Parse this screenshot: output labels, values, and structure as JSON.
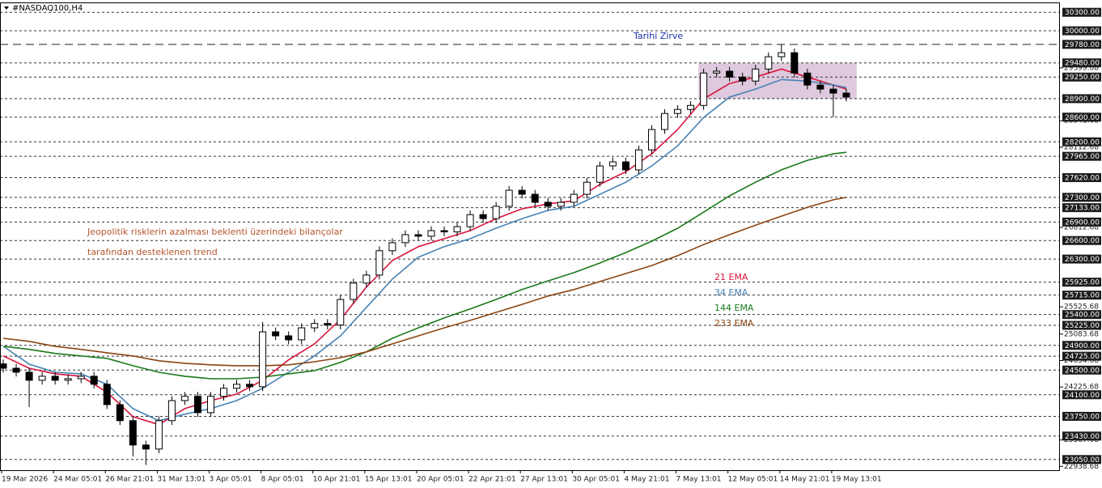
{
  "chart_data": {
    "type": "candlestick",
    "title": "#NASDAQ100,H4",
    "notes": [
      "Jeopolitik risklerin azalması beklenti üzerindeki bilançolar",
      "tarafından desteklenen trend"
    ],
    "up_color": "#ffffff",
    "down_color": "#000000",
    "categories": [
      "19 Mar 2026",
      null,
      null,
      null,
      "24 Mar 05:01",
      null,
      null,
      null,
      "26 Mar 21:01",
      null,
      null,
      null,
      "31 Mar 13:01",
      null,
      null,
      null,
      "3 Apr 05:01",
      null,
      null,
      null,
      "8 Apr 05:01",
      null,
      null,
      null,
      "10 Apr 21:01",
      null,
      null,
      null,
      "15 Apr 13:01",
      null,
      null,
      null,
      "20 Apr 05:01",
      null,
      null,
      null,
      "22 Apr 21:01",
      null,
      null,
      null,
      "27 Apr 13:01",
      null,
      null,
      null,
      "30 Apr 05:01",
      null,
      null,
      null,
      "4 May 21:01",
      null,
      null,
      null,
      "7 May 13:01",
      null,
      null,
      null,
      "12 May 05:01",
      null,
      null,
      null,
      "14 May 21:01",
      null,
      null,
      null,
      "19 May 13:01",
      null
    ],
    "open": [
      24600,
      24530,
      24465,
      24335,
      24400,
      24335,
      24360,
      24400,
      24270,
      23940,
      23680,
      23285,
      23220,
      23680,
      24005,
      24075,
      23810,
      24075,
      24205,
      24270,
      24230,
      25120,
      25055,
      24990,
      25185,
      25255,
      25230,
      25645,
      25910,
      26040,
      26435,
      26565,
      26695,
      26670,
      26760,
      26740,
      26825,
      27020,
      26955,
      27155,
      27415,
      27350,
      27220,
      27155,
      27220,
      27350,
      27545,
      27810,
      27875,
      27745,
      28070,
      28400,
      28660,
      28725,
      28790,
      29315,
      29345,
      29250,
      29185,
      29380,
      29580,
      29645,
      29315,
      29120,
      29055,
      28990
    ],
    "high": [
      24670,
      24600,
      24535,
      24470,
      24470,
      24430,
      24470,
      24470,
      24340,
      24010,
      23750,
      23355,
      23750,
      24075,
      24145,
      24145,
      24145,
      24275,
      24340,
      24340,
      25280,
      25190,
      25125,
      25255,
      25325,
      25325,
      25715,
      25980,
      26110,
      26505,
      26635,
      26765,
      26765,
      26830,
      26830,
      26895,
      27090,
      27090,
      27225,
      27485,
      27485,
      27420,
      27290,
      27290,
      27420,
      27615,
      27880,
      27945,
      27945,
      28140,
      28470,
      28730,
      28795,
      28860,
      29385,
      29415,
      29415,
      29320,
      29450,
      29650,
      29780,
      29715,
      29385,
      29190,
      29125,
      29060
    ],
    "low": [
      24460,
      24395,
      23900,
      24265,
      24265,
      24265,
      24290,
      24200,
      23870,
      23610,
      23100,
      22960,
      23150,
      23610,
      23935,
      23740,
      23740,
      24005,
      24135,
      24160,
      24160,
      24985,
      24920,
      24920,
      25115,
      25160,
      25160,
      25575,
      25840,
      25970,
      26365,
      26495,
      26600,
      26600,
      26670,
      26670,
      26755,
      26885,
      26885,
      27085,
      27280,
      27150,
      27085,
      27085,
      27150,
      27280,
      27475,
      27740,
      27675,
      27675,
      28000,
      28330,
      28590,
      28655,
      28720,
      29245,
      29180,
      29115,
      29115,
      29310,
      29510,
      29245,
      29050,
      28985,
      28600,
      28855
    ],
    "close": [
      24530,
      24465,
      24335,
      24400,
      24335,
      24360,
      24400,
      24270,
      23940,
      23680,
      23285,
      23220,
      23680,
      24005,
      24075,
      23810,
      24075,
      24205,
      24270,
      24230,
      25120,
      25055,
      24990,
      25185,
      25255,
      25230,
      25645,
      25910,
      26040,
      26435,
      26565,
      26695,
      26670,
      26760,
      26740,
      26825,
      27020,
      26955,
      27155,
      27415,
      27350,
      27220,
      27155,
      27220,
      27350,
      27545,
      27810,
      27875,
      27745,
      28070,
      28400,
      28660,
      28725,
      28790,
      29315,
      29345,
      29250,
      29185,
      29380,
      29580,
      29645,
      29315,
      29120,
      29055,
      28990,
      28925
    ],
    "series": [
      {
        "name": "21 EMA",
        "color": "#dc143c",
        "x": [
          0,
          2,
          4,
          6,
          8,
          10,
          12,
          14,
          16,
          18,
          20,
          22,
          24,
          26,
          28,
          30,
          32,
          34,
          36,
          38,
          40,
          42,
          44,
          46,
          48,
          50,
          52,
          54,
          56,
          58,
          60,
          62,
          64,
          65
        ],
        "values": [
          24730,
          24530,
          24440,
          24400,
          24140,
          23745,
          23615,
          23875,
          24005,
          24110,
          24335,
          24665,
          24925,
          25320,
          25845,
          26275,
          26500,
          26630,
          26760,
          26955,
          27115,
          27195,
          27245,
          27510,
          27715,
          28005,
          28400,
          28895,
          29145,
          29250,
          29380,
          29250,
          29120,
          29055
        ]
      },
      {
        "name": "34 EMA",
        "color": "#4682b4",
        "x": [
          0,
          2,
          4,
          6,
          8,
          10,
          12,
          14,
          16,
          18,
          20,
          22,
          24,
          26,
          28,
          30,
          32,
          34,
          36,
          38,
          40,
          42,
          44,
          46,
          48,
          50,
          52,
          54,
          56,
          58,
          60,
          62,
          64,
          65
        ],
        "values": [
          24885,
          24595,
          24465,
          24440,
          24270,
          23875,
          23680,
          23785,
          23875,
          24005,
          24205,
          24465,
          24730,
          25055,
          25515,
          25975,
          26330,
          26500,
          26630,
          26800,
          26955,
          27090,
          27155,
          27350,
          27545,
          27810,
          28135,
          28595,
          28925,
          29055,
          29210,
          29185,
          29120,
          29080
        ]
      },
      {
        "name": "144 EMA",
        "color": "#1a7a1a",
        "x": [
          0,
          2,
          4,
          6,
          8,
          10,
          12,
          14,
          16,
          18,
          20,
          22,
          24,
          26,
          28,
          30,
          32,
          34,
          36,
          38,
          40,
          42,
          44,
          46,
          48,
          50,
          52,
          54,
          56,
          58,
          60,
          62,
          64,
          65
        ],
        "values": [
          24885,
          24835,
          24770,
          24730,
          24690,
          24570,
          24465,
          24400,
          24360,
          24360,
          24385,
          24440,
          24490,
          24625,
          24795,
          25015,
          25185,
          25345,
          25490,
          25645,
          25805,
          25945,
          26080,
          26235,
          26405,
          26590,
          26800,
          27060,
          27325,
          27545,
          27745,
          27900,
          28005,
          28030
        ]
      },
      {
        "name": "233 EMA",
        "color": "#8b4513",
        "x": [
          0,
          2,
          4,
          6,
          8,
          10,
          12,
          14,
          16,
          18,
          20,
          22,
          24,
          26,
          28,
          30,
          32,
          34,
          36,
          38,
          40,
          42,
          44,
          46,
          48,
          50,
          52,
          54,
          56,
          58,
          60,
          62,
          64,
          65
        ],
        "values": [
          25015,
          24965,
          24885,
          24835,
          24780,
          24730,
          24650,
          24610,
          24585,
          24570,
          24570,
          24585,
          24635,
          24700,
          24795,
          24925,
          25055,
          25185,
          25305,
          25435,
          25565,
          25700,
          25805,
          25935,
          26065,
          26195,
          26355,
          26535,
          26695,
          26850,
          26995,
          27140,
          27260,
          27300
        ]
      }
    ],
    "zone": {
      "ylim": [
        28900,
        29480
      ],
      "color": "#d8bfd8"
    },
    "peak": {
      "value": 29780,
      "label": "29780.00",
      "text": "Tarihi Zirve"
    },
    "levels": [
      {
        "value": 30300,
        "label": "30300.00"
      },
      {
        "value": 30000,
        "label": "30000.00"
      },
      {
        "value": 29480,
        "label": "29480.00"
      },
      {
        "value": 29250,
        "label": "29250.00"
      },
      {
        "value": 28900,
        "label": "28900.00"
      },
      {
        "value": 28600,
        "label": "28600.00"
      },
      {
        "value": 28200,
        "label": "28200.00"
      },
      {
        "value": 27965,
        "label": "27965.00"
      },
      {
        "value": 27620,
        "label": "27620.00"
      },
      {
        "value": 27300,
        "label": "27300.00"
      },
      {
        "value": 27133,
        "label": "27133.00"
      },
      {
        "value": 26900,
        "label": "26900.00"
      },
      {
        "value": 26600,
        "label": "26600.00"
      },
      {
        "value": 26300,
        "label": "26300.00"
      },
      {
        "value": 25925,
        "label": "25925.00"
      },
      {
        "value": 25715,
        "label": "25715.00"
      },
      {
        "value": 25400,
        "label": "25400.00"
      },
      {
        "value": 25225,
        "label": "25225.00"
      },
      {
        "value": 24900,
        "label": "24900.00"
      },
      {
        "value": 24725,
        "label": "24725.00"
      },
      {
        "value": 24500,
        "label": "24500.00"
      },
      {
        "value": 24100,
        "label": "24100.00"
      },
      {
        "value": 23750,
        "label": "23750.00"
      },
      {
        "value": 23430,
        "label": "23430.00"
      },
      {
        "value": 23050,
        "label": "23050.00"
      }
    ],
    "ylim": [
      22890,
      30460
    ],
    "yticks": [
      29399.68,
      28541.68,
      28112.68,
      26812.68,
      25525.68,
      25083.68,
      24654.68,
      24225.68,
      23367.68,
      22938.68
    ]
  }
}
